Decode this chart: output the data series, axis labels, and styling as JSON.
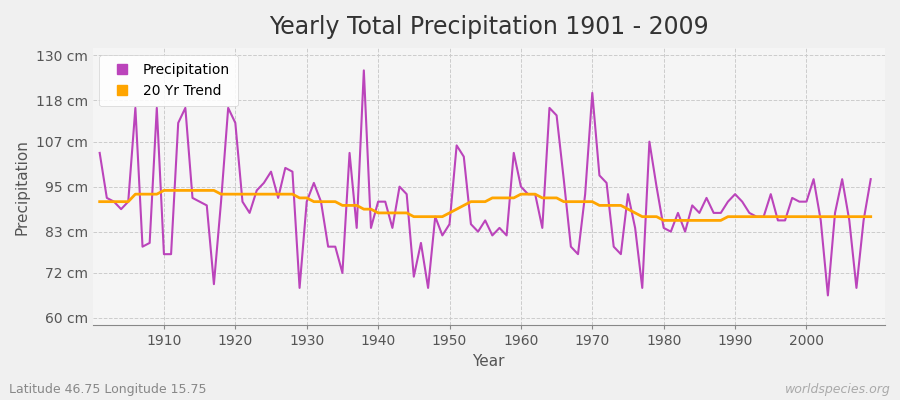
{
  "title": "Yearly Total Precipitation 1901 - 2009",
  "xlabel": "Year",
  "ylabel": "Precipitation",
  "subtitle": "Latitude 46.75 Longitude 15.75",
  "watermark": "worldspecies.org",
  "years": [
    1901,
    1902,
    1903,
    1904,
    1905,
    1906,
    1907,
    1908,
    1909,
    1910,
    1911,
    1912,
    1913,
    1914,
    1915,
    1916,
    1917,
    1918,
    1919,
    1920,
    1921,
    1922,
    1923,
    1924,
    1925,
    1926,
    1927,
    1928,
    1929,
    1930,
    1931,
    1932,
    1933,
    1934,
    1935,
    1936,
    1937,
    1938,
    1939,
    1940,
    1941,
    1942,
    1943,
    1944,
    1945,
    1946,
    1947,
    1948,
    1949,
    1950,
    1951,
    1952,
    1953,
    1954,
    1955,
    1956,
    1957,
    1958,
    1959,
    1960,
    1961,
    1962,
    1963,
    1964,
    1965,
    1966,
    1967,
    1968,
    1969,
    1970,
    1971,
    1972,
    1973,
    1974,
    1975,
    1976,
    1977,
    1978,
    1979,
    1980,
    1981,
    1982,
    1983,
    1984,
    1985,
    1986,
    1987,
    1988,
    1989,
    1990,
    1991,
    1992,
    1993,
    1994,
    1995,
    1996,
    1997,
    1998,
    1999,
    2000,
    2001,
    2002,
    2003,
    2004,
    2005,
    2006,
    2007,
    2008,
    2009
  ],
  "precip": [
    104,
    92,
    91,
    89,
    91,
    116,
    79,
    80,
    116,
    77,
    77,
    112,
    116,
    92,
    91,
    90,
    69,
    91,
    116,
    112,
    91,
    88,
    94,
    96,
    99,
    92,
    100,
    99,
    68,
    91,
    96,
    91,
    79,
    79,
    72,
    104,
    84,
    126,
    84,
    91,
    91,
    84,
    95,
    93,
    71,
    80,
    68,
    87,
    82,
    85,
    106,
    103,
    85,
    83,
    86,
    82,
    84,
    82,
    104,
    95,
    93,
    93,
    84,
    116,
    114,
    97,
    79,
    77,
    93,
    120,
    98,
    96,
    79,
    77,
    93,
    84,
    68,
    107,
    95,
    84,
    83,
    88,
    83,
    90,
    88,
    92,
    88,
    88,
    91,
    93,
    91,
    88,
    87,
    87,
    93,
    86,
    86,
    92,
    91,
    91,
    97,
    86,
    66,
    88,
    97,
    86,
    68,
    86,
    97
  ],
  "trend": [
    91,
    91,
    91,
    91,
    91,
    93,
    93,
    93,
    93,
    94,
    94,
    94,
    94,
    94,
    94,
    94,
    94,
    93,
    93,
    93,
    93,
    93,
    93,
    93,
    93,
    93,
    93,
    93,
    92,
    92,
    91,
    91,
    91,
    91,
    90,
    90,
    90,
    89,
    89,
    88,
    88,
    88,
    88,
    88,
    87,
    87,
    87,
    87,
    87,
    88,
    89,
    90,
    91,
    91,
    91,
    92,
    92,
    92,
    92,
    93,
    93,
    93,
    92,
    92,
    92,
    91,
    91,
    91,
    91,
    91,
    90,
    90,
    90,
    90,
    89,
    88,
    87,
    87,
    87,
    86,
    86,
    86,
    86,
    86,
    86,
    86,
    86,
    86,
    87,
    87,
    87,
    87,
    87,
    87,
    87,
    87,
    87,
    87,
    87,
    87,
    87,
    87,
    87,
    87,
    87,
    87,
    87,
    87,
    87
  ],
  "precip_color": "#BB44BB",
  "trend_color": "#FFA500",
  "fig_bg_color": "#F0F0F0",
  "plot_bg_color": "#F5F5F5",
  "grid_color": "#CCCCCC",
  "yticks": [
    60,
    72,
    83,
    95,
    107,
    118,
    130
  ],
  "ytick_labels": [
    "60 cm",
    "72 cm",
    "83 cm",
    "95 cm",
    "107 cm",
    "118 cm",
    "130 cm"
  ],
  "ylim": [
    58,
    132
  ],
  "xlim": [
    1900,
    2011
  ],
  "xticks": [
    1910,
    1920,
    1930,
    1940,
    1950,
    1960,
    1970,
    1980,
    1990,
    2000
  ],
  "title_fontsize": 17,
  "axis_label_fontsize": 11,
  "tick_fontsize": 10,
  "legend_fontsize": 10,
  "precip_linewidth": 1.5,
  "trend_linewidth": 2.0
}
